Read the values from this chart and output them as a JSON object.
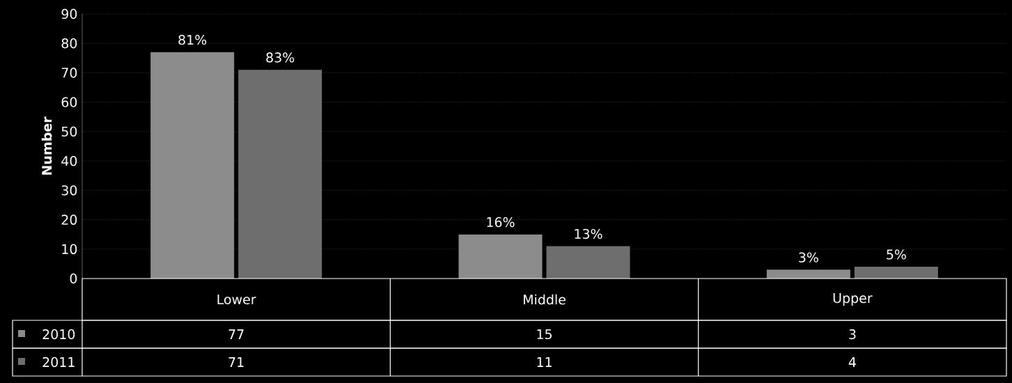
{
  "chart_data": {
    "type": "bar",
    "ylabel": "Number",
    "categories": [
      "Lower",
      "Middle",
      "Upper"
    ],
    "series": [
      {
        "name": "2010",
        "color": "#8c8c8c",
        "values": [
          77,
          15,
          3
        ]
      },
      {
        "name": "2011",
        "color": "#6e6e6e",
        "values": [
          71,
          11,
          4
        ]
      }
    ],
    "annotations": [
      {
        "text": "81%",
        "x": "Lower",
        "y": 77
      },
      {
        "text": "83%",
        "x": "Lower",
        "y": 71
      },
      {
        "text": "16%",
        "x": "Middle",
        "y": 15
      },
      {
        "text": "13%",
        "x": "Middle",
        "y": 11
      },
      {
        "text": "3%",
        "x": "Upper",
        "y": 3
      },
      {
        "text": "5%",
        "x": "Upper",
        "y": 4
      }
    ],
    "ylim": [
      0,
      90
    ],
    "yticks": [
      0,
      10,
      20,
      30,
      40,
      50,
      60,
      70,
      80,
      90
    ],
    "grid": "y",
    "legend": "bottom left",
    "data_labels": true
  }
}
